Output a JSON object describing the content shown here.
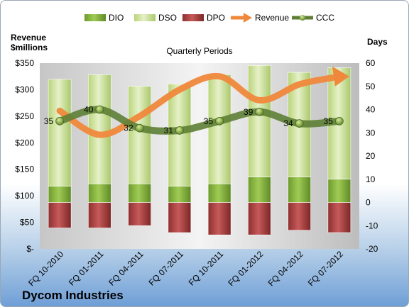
{
  "company": "Dycom Industries",
  "chart_data": {
    "type": "bar",
    "title": "Quarterly Periods",
    "left_axis_title_line1": "Revenue",
    "left_axis_title_line2": "$millions",
    "right_axis_title": "Days",
    "categories": [
      "FQ 10-2010",
      "FQ 01-2011",
      "FQ 04-2011",
      "FQ 07-2011",
      "FQ 10-2011",
      "FQ 01-2012",
      "FQ 04-2012",
      "FQ 07-2012"
    ],
    "left_axis": {
      "min": 0,
      "max": 350,
      "step": 50,
      "tick_labels": [
        "$-",
        "$50",
        "$100",
        "$150",
        "$200",
        "$250",
        "$300",
        "$350"
      ]
    },
    "right_axis": {
      "min": -20,
      "max": 60,
      "step": 10,
      "tick_labels": [
        "-20",
        "-10",
        "0",
        "10",
        "20",
        "30",
        "40",
        "50",
        "60"
      ]
    },
    "series": [
      {
        "name": "DIO",
        "axis": "right",
        "kind": "stacked-bar-positive",
        "values": [
          7,
          8,
          8,
          7,
          8,
          11,
          11,
          10
        ],
        "color": "#8fbc3b"
      },
      {
        "name": "DSO",
        "axis": "right",
        "kind": "stacked-bar-positive",
        "values": [
          46,
          47,
          42,
          44,
          47,
          48,
          45,
          48
        ],
        "color": "#cfe3a0"
      },
      {
        "name": "DPO",
        "axis": "right",
        "kind": "bar-negative",
        "values": [
          -11,
          -11,
          -10,
          -13,
          -14,
          -14,
          -12,
          -13
        ],
        "color": "#b24a4a"
      },
      {
        "name": "Revenue",
        "axis": "left",
        "kind": "line-arrow",
        "values": [
          260,
          215,
          250,
          300,
          325,
          280,
          310,
          325
        ],
        "color": "#f0883c"
      },
      {
        "name": "CCC",
        "axis": "right",
        "kind": "line-markers",
        "values": [
          35,
          40,
          32,
          31,
          35,
          39,
          34,
          35
        ],
        "labels": [
          "35",
          "40",
          "32",
          "31",
          "35",
          "39",
          "34",
          "35"
        ],
        "color": "#5e7f35"
      }
    ],
    "legend": {
      "position": "top"
    },
    "grid": false
  }
}
